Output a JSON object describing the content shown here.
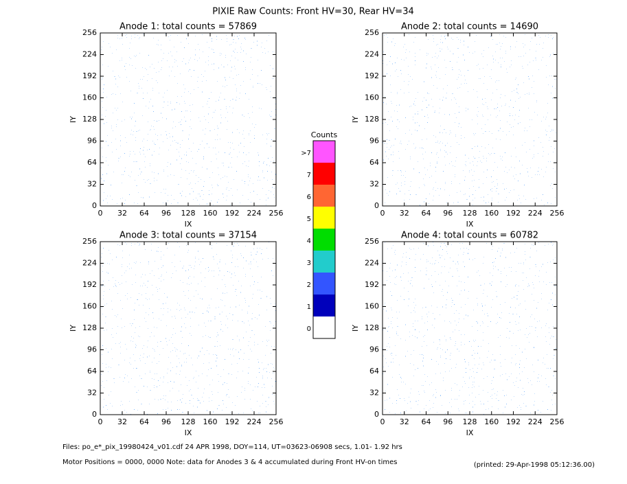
{
  "title": "PIXIE Raw Counts:  Front HV=30, Rear HV=34",
  "chart_data": [
    {
      "type": "heatmap",
      "title": "Anode 1: total counts = 57869",
      "x_label": "IX",
      "y_label": "IY",
      "xlim": [
        0,
        256
      ],
      "ylim": [
        0,
        256
      ],
      "xticks": [
        0,
        32,
        64,
        96,
        128,
        160,
        192,
        224,
        256
      ],
      "yticks": [
        0,
        32,
        64,
        96,
        128,
        160,
        192,
        224,
        256
      ]
    },
    {
      "type": "heatmap",
      "title": "Anode 2: total counts = 14690",
      "x_label": "IX",
      "y_label": "IY",
      "xlim": [
        0,
        256
      ],
      "ylim": [
        0,
        256
      ],
      "xticks": [
        0,
        32,
        64,
        96,
        128,
        160,
        192,
        224,
        256
      ],
      "yticks": [
        0,
        32,
        64,
        96,
        128,
        160,
        192,
        224,
        256
      ]
    },
    {
      "type": "heatmap",
      "title": "Anode 3: total counts = 37154",
      "x_label": "IX",
      "y_label": "IY",
      "xlim": [
        0,
        256
      ],
      "ylim": [
        0,
        256
      ],
      "xticks": [
        0,
        32,
        64,
        96,
        128,
        160,
        192,
        224,
        256
      ],
      "yticks": [
        0,
        32,
        64,
        96,
        128,
        160,
        192,
        224,
        256
      ]
    },
    {
      "type": "heatmap",
      "title": "Anode 4: total counts = 60782",
      "x_label": "IX",
      "y_label": "IY",
      "xlim": [
        0,
        256
      ],
      "ylim": [
        0,
        256
      ],
      "xticks": [
        0,
        32,
        64,
        96,
        128,
        160,
        192,
        224,
        256
      ],
      "yticks": [
        0,
        32,
        64,
        96,
        128,
        160,
        192,
        224,
        256
      ]
    }
  ],
  "colorbar": {
    "title": "Counts",
    "labels": [
      ">7",
      "7",
      "6",
      "5",
      "4",
      "3",
      "2",
      "1",
      "0"
    ],
    "colors": [
      "#ff55ff",
      "#ff0000",
      "#ff6633",
      "#ffff00",
      "#00dd00",
      "#22cccc",
      "#3355ff",
      "#0000bb",
      "#ffffff"
    ]
  },
  "footer": {
    "files": "Files: po_e*_pix_19980424_v01.cdf    24 APR 1998, DOY=114, UT=03623-06908 secs,   1.01- 1.92 hrs",
    "motor": "Motor Positions = 0000, 0000    Note: data for Anodes 3 & 4 accumulated during Front HV-on times",
    "printed": "(printed: 29-Apr-1998 05:12:36.00)"
  }
}
